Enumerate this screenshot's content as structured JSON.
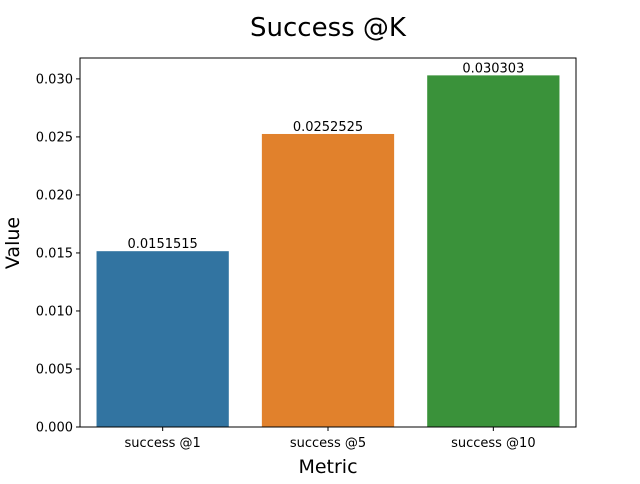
{
  "chart_data": {
    "type": "bar",
    "title": "Success @K",
    "xlabel": "Metric",
    "ylabel": "Value",
    "categories": [
      "success @1",
      "success @5",
      "success @10"
    ],
    "values": [
      0.0151515,
      0.0252525,
      0.030303
    ],
    "value_labels": [
      "0.0151515",
      "0.0252525",
      "0.030303"
    ],
    "colors": [
      "#3274a1",
      "#e1812c",
      "#3a923a"
    ],
    "ylim": [
      0,
      0.0318
    ],
    "yticks": [
      0.0,
      0.005,
      0.01,
      0.015,
      0.02,
      0.025,
      0.03
    ],
    "ytick_labels": [
      "0.000",
      "0.005",
      "0.010",
      "0.015",
      "0.020",
      "0.025",
      "0.030"
    ],
    "grid": false,
    "legend": "none"
  }
}
